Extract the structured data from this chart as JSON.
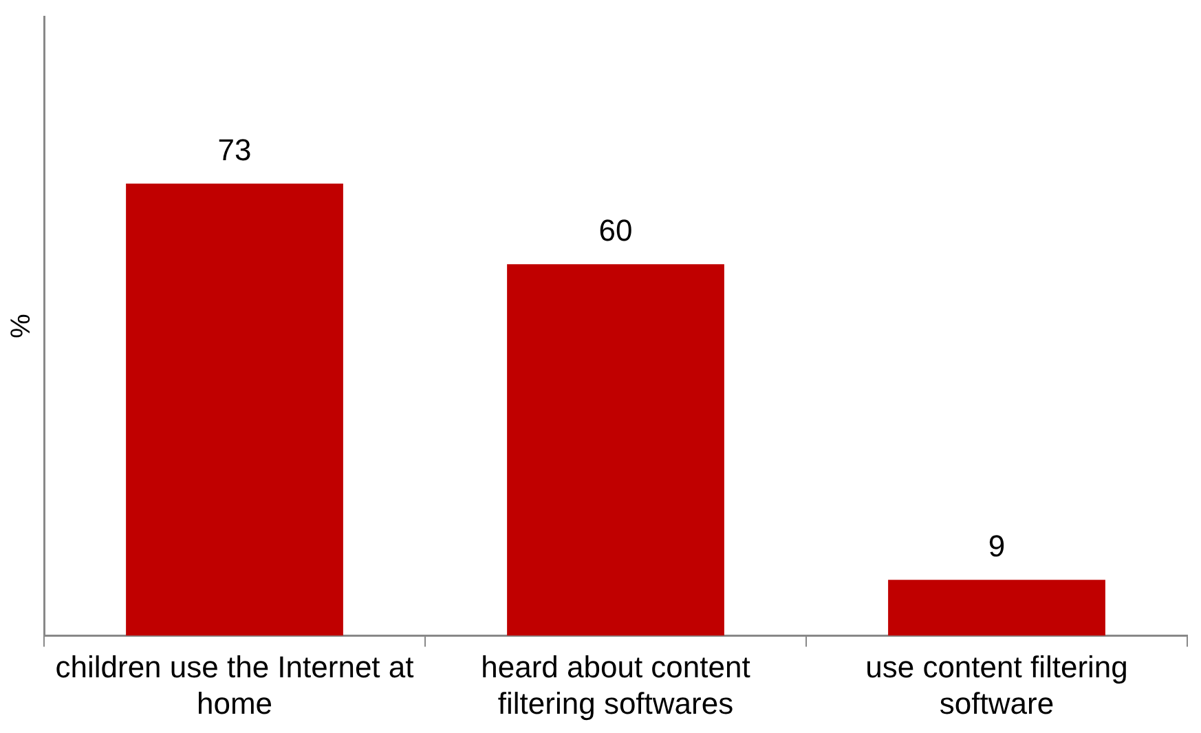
{
  "chart_data": {
    "type": "bar",
    "ylabel": "%",
    "categories": [
      "children use the Internet at home",
      "heard about content filtering softwares",
      "use content filtering software"
    ],
    "values": [
      73,
      60,
      9
    ],
    "color": "#c00000",
    "ylim": [
      0,
      100
    ],
    "data_labels": true,
    "grid": false,
    "legend": false,
    "tick_labels": "x"
  }
}
